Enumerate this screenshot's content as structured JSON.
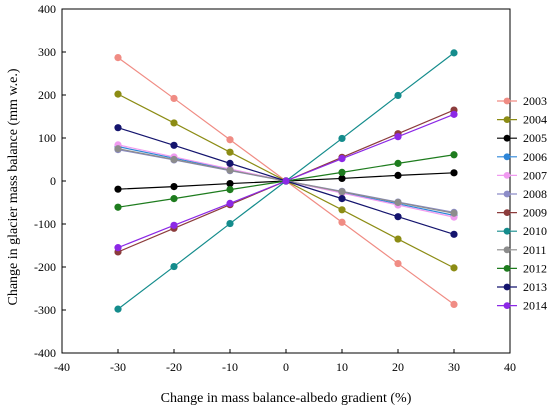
{
  "chart_data": {
    "type": "line",
    "title": "",
    "xlabel": "Change in mass balance-albedo gradient (%)",
    "ylabel": "Change in glacier mass balance (mm w.e.)",
    "xlim": [
      -40,
      40
    ],
    "ylim": [
      -400,
      400
    ],
    "xticks": [
      -40,
      -30,
      -20,
      -10,
      0,
      10,
      20,
      30,
      40
    ],
    "yticks": [
      -400,
      -300,
      -200,
      -100,
      0,
      100,
      200,
      300,
      400
    ],
    "grid": false,
    "legend_position": "right",
    "x": [
      -30,
      -20,
      -10,
      0,
      10,
      20,
      30
    ],
    "series": [
      {
        "name": "2003",
        "color": "#f08c84",
        "values": [
          287,
          192,
          96,
          0,
          -96,
          -192,
          -287
        ]
      },
      {
        "name": "2004",
        "color": "#8c8c14",
        "values": [
          202,
          135,
          67,
          0,
          -67,
          -135,
          -202
        ]
      },
      {
        "name": "2005",
        "color": "#000000",
        "values": [
          -19,
          -13,
          -6,
          0,
          6,
          13,
          19
        ]
      },
      {
        "name": "2006",
        "color": "#2e86d8",
        "values": [
          80,
          53,
          27,
          0,
          -27,
          -53,
          -80
        ]
      },
      {
        "name": "2007",
        "color": "#f09af0",
        "values": [
          84,
          56,
          28,
          0,
          -28,
          -56,
          -84
        ]
      },
      {
        "name": "2008",
        "color": "#8c8cc8",
        "values": [
          73,
          49,
          24,
          0,
          -24,
          -49,
          -73
        ]
      },
      {
        "name": "2009",
        "color": "#8c3c3c",
        "values": [
          -165,
          -110,
          -55,
          0,
          55,
          110,
          165
        ]
      },
      {
        "name": "2010",
        "color": "#148c8c",
        "values": [
          -298,
          -199,
          -99,
          0,
          99,
          199,
          298
        ]
      },
      {
        "name": "2011",
        "color": "#8c8c8c",
        "values": [
          75,
          50,
          25,
          0,
          -25,
          -50,
          -75
        ]
      },
      {
        "name": "2012",
        "color": "#1e7c1e",
        "values": [
          -61,
          -41,
          -20,
          0,
          20,
          41,
          61
        ]
      },
      {
        "name": "2013",
        "color": "#14146e",
        "values": [
          124,
          83,
          41,
          0,
          -41,
          -83,
          -124
        ]
      },
      {
        "name": "2014",
        "color": "#8c28e6",
        "values": [
          -155,
          -103,
          -52,
          0,
          52,
          103,
          155
        ]
      }
    ]
  }
}
